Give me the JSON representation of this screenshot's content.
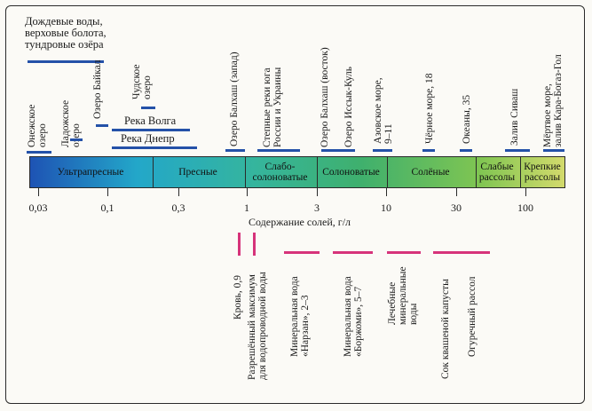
{
  "top_labels": {
    "rain": [
      "Дождевые воды,",
      "верховые болота,",
      "тундровые озёра"
    ],
    "onega": [
      "Онежское",
      "озеро"
    ],
    "ladoga": [
      "Ладожское",
      "озеро"
    ],
    "baikal": "Озеро Байкал",
    "chudskoe": [
      "Чудское",
      "озеро"
    ],
    "volga": "Река Волга",
    "dnepr": "Река Днепр",
    "balkhash_west": "Озеро Балхаш (запад)",
    "steppe_rivers": [
      "Степные реки юга",
      "России и Украины"
    ],
    "balkhash_east": "Озеро Балхаш (восток)",
    "issyk_kul": "Озеро Иссык-Куль",
    "azov": [
      "Азовское море,",
      "9–11"
    ],
    "black_sea": "Чёрное море, 18",
    "oceans": "Океаны, 35",
    "sivash": "Залив Сиваш",
    "dead_sea": [
      "Мёртвое море,",
      "залив Кара-Богаз-Гол"
    ]
  },
  "zones": {
    "z1": "Ультрапресные",
    "z2": "Пресные",
    "z3": [
      "Слабо-",
      "солоноватые"
    ],
    "z4": "Солоноватые",
    "z5": "Солёные",
    "z6": [
      "Слабые",
      "рассолы"
    ],
    "z7": [
      "Крепкие",
      "рассолы"
    ]
  },
  "ticks": [
    "0,03",
    "0,1",
    "0,3",
    "1",
    "3",
    "10",
    "30",
    "100"
  ],
  "axis_title": "Содержание солей, г/л",
  "bottom_labels": {
    "blood": "Кровь, 0,9",
    "drinking": [
      "Разрешённый максимум",
      "для водопроводной воды"
    ],
    "narzan": [
      "Минеральная вода",
      "«Нарзан», 2–3"
    ],
    "borjomi": [
      "Минеральная вода",
      "«Боржоми», 5–7"
    ],
    "healing": [
      "Лечебные",
      "минеральные",
      "воды"
    ],
    "sauerkraut": "Сок квашеной капусты",
    "pickle": "Огуречный рассол"
  },
  "colors": {
    "blue_marks": "#2451a8",
    "pink_marks": "#d6337a"
  }
}
